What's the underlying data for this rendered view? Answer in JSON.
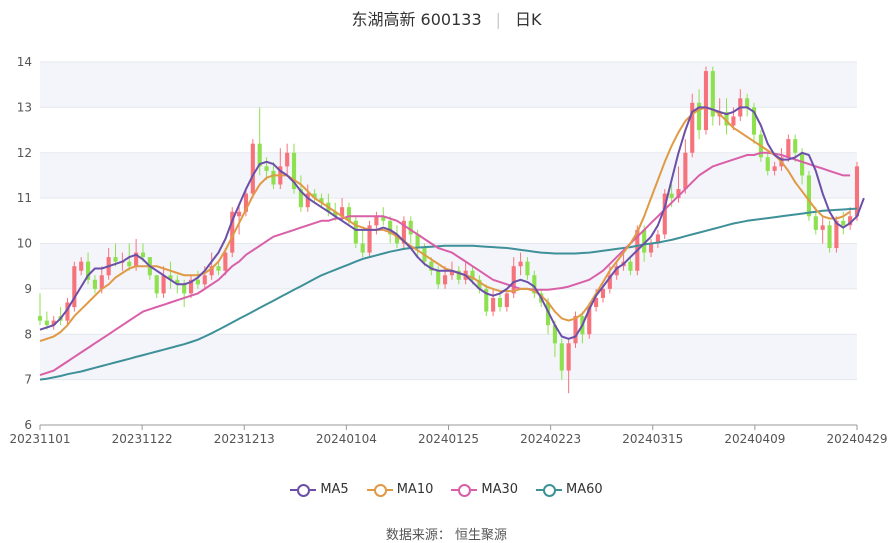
{
  "title": {
    "name": "东湖高新 600133",
    "period": "日K"
  },
  "source": "数据来源：  恒生聚源",
  "colors": {
    "up": "#f6737b",
    "down": "#8ee04f",
    "ma5": "#6b4fa8",
    "ma10": "#e09a45",
    "ma30": "#d95fa8",
    "ma60": "#3e9099",
    "band": "#f3f5fa",
    "grid": "#e5e8ee"
  },
  "legend": [
    {
      "key": "ma5",
      "label": "MA5"
    },
    {
      "key": "ma10",
      "label": "MA10"
    },
    {
      "key": "ma30",
      "label": "MA30"
    },
    {
      "key": "ma60",
      "label": "MA60"
    }
  ],
  "chart_data": {
    "type": "candlestick",
    "x_ticks": [
      "20231101",
      "20231122",
      "20231213",
      "20240104",
      "20240125",
      "20240223",
      "20240315",
      "20240409",
      "20240429"
    ],
    "y_ticks": [
      6,
      7,
      8,
      9,
      10,
      11,
      12,
      13,
      14
    ],
    "ylim": [
      6,
      14
    ],
    "n": 120,
    "candles": [
      [
        8.4,
        8.3,
        8.9,
        8.2
      ],
      [
        8.3,
        8.2,
        8.5,
        8.1
      ],
      [
        8.2,
        8.3,
        8.4,
        8.1
      ],
      [
        8.4,
        8.3,
        8.6,
        8.2
      ],
      [
        8.3,
        8.7,
        8.8,
        8.2
      ],
      [
        8.6,
        9.5,
        9.6,
        8.5
      ],
      [
        9.4,
        9.6,
        9.7,
        9.3
      ],
      [
        9.6,
        9.2,
        9.8,
        9.1
      ],
      [
        9.2,
        9.0,
        9.3,
        8.9
      ],
      [
        9.0,
        9.3,
        9.5,
        8.9
      ],
      [
        9.3,
        9.7,
        9.9,
        9.2
      ],
      [
        9.7,
        9.6,
        10.0,
        9.5
      ],
      [
        9.6,
        9.6,
        9.8,
        9.4
      ],
      [
        9.6,
        9.5,
        10.0,
        9.4
      ],
      [
        9.5,
        9.8,
        10.1,
        9.4
      ],
      [
        9.8,
        9.7,
        10.0,
        9.6
      ],
      [
        9.7,
        9.3,
        9.7,
        9.2
      ],
      [
        9.3,
        8.9,
        9.3,
        8.8
      ],
      [
        8.9,
        9.3,
        9.5,
        8.8
      ],
      [
        9.3,
        9.2,
        9.6,
        9.0
      ],
      [
        9.2,
        9.1,
        9.3,
        8.9
      ],
      [
        9.1,
        8.9,
        9.2,
        8.6
      ],
      [
        8.9,
        9.2,
        9.3,
        8.8
      ],
      [
        9.2,
        9.1,
        9.4,
        9.0
      ],
      [
        9.1,
        9.3,
        9.5,
        9.0
      ],
      [
        9.3,
        9.5,
        9.8,
        9.2
      ],
      [
        9.5,
        9.4,
        9.6,
        9.3
      ],
      [
        9.4,
        9.8,
        9.9,
        9.3
      ],
      [
        9.8,
        10.7,
        10.8,
        9.7
      ],
      [
        10.6,
        10.7,
        10.9,
        10.2
      ],
      [
        10.7,
        11.1,
        11.2,
        10.6
      ],
      [
        11.1,
        12.2,
        12.3,
        11.0
      ],
      [
        12.2,
        11.7,
        13.0,
        11.5
      ],
      [
        11.7,
        11.6,
        11.9,
        11.4
      ],
      [
        11.6,
        11.3,
        11.8,
        11.2
      ],
      [
        11.3,
        11.7,
        12.1,
        11.2
      ],
      [
        11.7,
        12.0,
        12.2,
        11.5
      ],
      [
        12.0,
        11.2,
        12.2,
        11.1
      ],
      [
        11.2,
        10.8,
        11.5,
        10.7
      ],
      [
        10.8,
        11.1,
        11.3,
        10.7
      ],
      [
        11.1,
        11.0,
        11.2,
        10.9
      ],
      [
        11.0,
        10.9,
        11.1,
        10.8
      ],
      [
        10.9,
        10.7,
        11.1,
        10.6
      ],
      [
        10.7,
        10.6,
        10.9,
        10.5
      ],
      [
        10.6,
        10.8,
        11.0,
        10.5
      ],
      [
        10.8,
        10.5,
        10.9,
        10.4
      ],
      [
        10.5,
        10.0,
        10.6,
        9.9
      ],
      [
        10.0,
        9.8,
        10.3,
        9.7
      ],
      [
        9.8,
        10.4,
        10.5,
        9.7
      ],
      [
        10.4,
        10.6,
        10.7,
        10.2
      ],
      [
        10.6,
        10.5,
        10.8,
        10.4
      ],
      [
        10.5,
        10.2,
        10.6,
        10.0
      ],
      [
        10.2,
        10.0,
        10.4,
        9.9
      ],
      [
        10.0,
        10.5,
        10.6,
        9.9
      ],
      [
        10.5,
        10.2,
        10.6,
        10.0
      ],
      [
        10.2,
        9.9,
        10.3,
        9.7
      ],
      [
        9.9,
        9.6,
        10.0,
        9.5
      ],
      [
        9.6,
        9.4,
        9.7,
        9.3
      ],
      [
        9.4,
        9.1,
        9.5,
        9.0
      ],
      [
        9.1,
        9.3,
        9.5,
        9.0
      ],
      [
        9.3,
        9.4,
        9.6,
        9.2
      ],
      [
        9.4,
        9.2,
        9.5,
        9.1
      ],
      [
        9.2,
        9.4,
        9.6,
        9.1
      ],
      [
        9.4,
        9.2,
        9.5,
        9.1
      ],
      [
        9.2,
        9.0,
        9.3,
        8.9
      ],
      [
        9.0,
        8.5,
        9.1,
        8.4
      ],
      [
        8.5,
        8.8,
        9.0,
        8.4
      ],
      [
        8.8,
        8.6,
        8.9,
        8.5
      ],
      [
        8.6,
        8.9,
        9.0,
        8.5
      ],
      [
        8.9,
        9.5,
        9.7,
        8.8
      ],
      [
        9.5,
        9.6,
        9.8,
        9.3
      ],
      [
        9.6,
        9.3,
        9.7,
        9.2
      ],
      [
        9.3,
        8.9,
        9.4,
        8.8
      ],
      [
        8.9,
        8.7,
        9.0,
        8.6
      ],
      [
        8.7,
        8.2,
        8.8,
        8.0
      ],
      [
        8.2,
        7.8,
        8.3,
        7.5
      ],
      [
        7.8,
        7.2,
        7.9,
        7.0
      ],
      [
        7.2,
        7.8,
        7.9,
        6.7
      ],
      [
        7.8,
        8.4,
        8.5,
        7.7
      ],
      [
        8.4,
        8.0,
        8.5,
        7.8
      ],
      [
        8.0,
        8.6,
        8.7,
        7.9
      ],
      [
        8.6,
        8.8,
        9.0,
        8.5
      ],
      [
        8.8,
        9.0,
        9.1,
        8.7
      ],
      [
        9.0,
        9.3,
        9.5,
        8.9
      ],
      [
        9.3,
        9.5,
        9.6,
        9.2
      ],
      [
        9.5,
        9.6,
        9.8,
        9.4
      ],
      [
        9.6,
        9.4,
        9.7,
        9.3
      ],
      [
        9.4,
        10.3,
        10.4,
        9.3
      ],
      [
        10.3,
        9.8,
        10.4,
        9.6
      ],
      [
        9.8,
        10.0,
        10.1,
        9.7
      ],
      [
        10.0,
        10.2,
        10.3,
        9.9
      ],
      [
        10.2,
        11.1,
        11.2,
        10.1
      ],
      [
        11.1,
        11.0,
        11.3,
        10.8
      ],
      [
        11.0,
        11.2,
        11.7,
        10.9
      ],
      [
        11.2,
        12.0,
        12.3,
        11.1
      ],
      [
        12.0,
        13.1,
        13.3,
        11.9
      ],
      [
        13.1,
        12.5,
        13.4,
        12.3
      ],
      [
        12.5,
        13.8,
        13.9,
        12.4
      ],
      [
        13.8,
        12.8,
        13.9,
        12.6
      ],
      [
        12.8,
        12.9,
        13.2,
        12.6
      ],
      [
        12.9,
        12.6,
        13.2,
        12.4
      ],
      [
        12.6,
        12.8,
        13.0,
        12.5
      ],
      [
        12.8,
        13.2,
        13.4,
        12.7
      ],
      [
        13.2,
        13.0,
        13.3,
        12.8
      ],
      [
        13.0,
        12.4,
        13.1,
        12.2
      ],
      [
        12.4,
        11.9,
        12.5,
        11.8
      ],
      [
        11.9,
        11.6,
        12.0,
        11.5
      ],
      [
        11.6,
        11.7,
        11.8,
        11.5
      ],
      [
        11.7,
        11.9,
        12.1,
        11.6
      ],
      [
        11.9,
        12.3,
        12.4,
        11.8
      ],
      [
        12.3,
        12.0,
        12.4,
        11.8
      ],
      [
        12.0,
        11.5,
        12.1,
        11.3
      ],
      [
        11.5,
        10.6,
        11.6,
        10.5
      ],
      [
        10.6,
        10.3,
        10.8,
        10.2
      ],
      [
        10.3,
        10.4,
        10.6,
        10.0
      ],
      [
        10.4,
        9.9,
        10.5,
        9.8
      ],
      [
        9.9,
        10.5,
        10.6,
        9.8
      ],
      [
        10.5,
        10.4,
        10.7,
        10.2
      ],
      [
        10.4,
        10.6,
        10.8,
        10.3
      ],
      [
        10.6,
        11.7,
        11.8,
        10.5
      ]
    ],
    "ma5": [
      8.1,
      8.15,
      8.2,
      8.35,
      8.55,
      8.8,
      9.05,
      9.3,
      9.45,
      9.45,
      9.5,
      9.55,
      9.6,
      9.7,
      9.75,
      9.65,
      9.5,
      9.4,
      9.3,
      9.2,
      9.1,
      9.1,
      9.15,
      9.25,
      9.4,
      9.6,
      9.8,
      10.1,
      10.5,
      10.85,
      11.2,
      11.5,
      11.75,
      11.8,
      11.75,
      11.6,
      11.5,
      11.35,
      11.15,
      11.0,
      10.9,
      10.8,
      10.7,
      10.6,
      10.5,
      10.4,
      10.3,
      10.3,
      10.3,
      10.3,
      10.35,
      10.3,
      10.2,
      10.05,
      9.9,
      9.7,
      9.55,
      9.45,
      9.4,
      9.4,
      9.4,
      9.35,
      9.3,
      9.15,
      9.0,
      8.9,
      8.85,
      8.9,
      9.0,
      9.15,
      9.2,
      9.15,
      9.05,
      8.8,
      8.5,
      8.2,
      7.95,
      7.9,
      7.95,
      8.2,
      8.55,
      8.85,
      9.05,
      9.25,
      9.45,
      9.55,
      9.7,
      9.85,
      10.0,
      10.15,
      10.4,
      10.8,
      11.4,
      12.0,
      12.5,
      12.9,
      13.0,
      13.0,
      12.95,
      12.9,
      12.85,
      12.9,
      13.0,
      13.0,
      12.9,
      12.6,
      12.2,
      11.95,
      11.85,
      11.85,
      11.9,
      12.0,
      11.95,
      11.6,
      11.1,
      10.7,
      10.45,
      10.35,
      10.45,
      10.6,
      11.0
    ],
    "ma10": [
      7.85,
      7.9,
      7.95,
      8.05,
      8.2,
      8.4,
      8.55,
      8.7,
      8.85,
      9.0,
      9.1,
      9.25,
      9.35,
      9.45,
      9.5,
      9.5,
      9.5,
      9.5,
      9.45,
      9.4,
      9.35,
      9.3,
      9.3,
      9.3,
      9.35,
      9.45,
      9.6,
      9.85,
      10.15,
      10.45,
      10.75,
      11.05,
      11.3,
      11.45,
      11.5,
      11.5,
      11.5,
      11.4,
      11.3,
      11.15,
      11.0,
      10.9,
      10.8,
      10.7,
      10.6,
      10.5,
      10.4,
      10.35,
      10.3,
      10.3,
      10.3,
      10.25,
      10.15,
      10.05,
      9.95,
      9.85,
      9.75,
      9.65,
      9.55,
      9.45,
      9.4,
      9.35,
      9.3,
      9.25,
      9.15,
      9.05,
      9.0,
      8.95,
      8.95,
      8.95,
      9.0,
      9.0,
      8.95,
      8.85,
      8.7,
      8.5,
      8.35,
      8.3,
      8.35,
      8.45,
      8.65,
      8.9,
      9.15,
      9.4,
      9.6,
      9.8,
      10.0,
      10.25,
      10.6,
      11.0,
      11.4,
      11.8,
      12.15,
      12.45,
      12.7,
      12.85,
      12.95,
      13.0,
      12.95,
      12.85,
      12.7,
      12.55,
      12.45,
      12.35,
      12.25,
      12.15,
      12.05,
      11.95,
      11.8,
      11.6,
      11.35,
      11.15,
      10.95,
      10.75,
      10.6,
      10.55,
      10.55,
      10.6,
      10.7
    ],
    "ma30": [
      7.1,
      7.15,
      7.2,
      7.3,
      7.4,
      7.5,
      7.6,
      7.7,
      7.8,
      7.9,
      8.0,
      8.1,
      8.2,
      8.3,
      8.4,
      8.5,
      8.55,
      8.6,
      8.65,
      8.7,
      8.75,
      8.8,
      8.85,
      8.9,
      9.0,
      9.1,
      9.2,
      9.35,
      9.5,
      9.6,
      9.75,
      9.85,
      9.95,
      10.05,
      10.15,
      10.2,
      10.25,
      10.3,
      10.35,
      10.4,
      10.45,
      10.5,
      10.5,
      10.55,
      10.55,
      10.6,
      10.6,
      10.6,
      10.6,
      10.6,
      10.6,
      10.55,
      10.5,
      10.4,
      10.3,
      10.2,
      10.1,
      10.0,
      9.9,
      9.85,
      9.8,
      9.7,
      9.6,
      9.5,
      9.4,
      9.3,
      9.2,
      9.15,
      9.1,
      9.05,
      9.0,
      9.0,
      8.98,
      8.98,
      8.98,
      9.0,
      9.02,
      9.05,
      9.1,
      9.15,
      9.2,
      9.3,
      9.4,
      9.55,
      9.7,
      9.85,
      10.0,
      10.15,
      10.3,
      10.45,
      10.6,
      10.75,
      10.9,
      11.05,
      11.2,
      11.35,
      11.5,
      11.6,
      11.7,
      11.75,
      11.8,
      11.85,
      11.9,
      11.95,
      11.95,
      12.0,
      12.0,
      11.98,
      11.95,
      11.9,
      11.85,
      11.8,
      11.75,
      11.7,
      11.65,
      11.6,
      11.55,
      11.5,
      11.5
    ],
    "ma60": [
      7.0,
      7.02,
      7.05,
      7.08,
      7.12,
      7.15,
      7.18,
      7.22,
      7.26,
      7.3,
      7.34,
      7.38,
      7.42,
      7.46,
      7.5,
      7.54,
      7.58,
      7.62,
      7.66,
      7.7,
      7.74,
      7.78,
      7.83,
      7.88,
      7.95,
      8.02,
      8.1,
      8.18,
      8.26,
      8.34,
      8.42,
      8.5,
      8.58,
      8.66,
      8.74,
      8.82,
      8.9,
      8.98,
      9.06,
      9.14,
      9.22,
      9.3,
      9.36,
      9.42,
      9.48,
      9.54,
      9.6,
      9.66,
      9.7,
      9.74,
      9.78,
      9.82,
      9.85,
      9.88,
      9.9,
      9.91,
      9.92,
      9.93,
      9.94,
      9.95,
      9.95,
      9.95,
      9.95,
      9.95,
      9.94,
      9.93,
      9.92,
      9.91,
      9.9,
      9.88,
      9.86,
      9.84,
      9.82,
      9.8,
      9.79,
      9.78,
      9.78,
      9.78,
      9.78,
      9.79,
      9.8,
      9.82,
      9.84,
      9.86,
      9.88,
      9.9,
      9.92,
      9.95,
      9.98,
      10.0,
      10.02,
      10.05,
      10.08,
      10.12,
      10.16,
      10.2,
      10.24,
      10.28,
      10.32,
      10.36,
      10.4,
      10.44,
      10.47,
      10.5,
      10.52,
      10.54,
      10.56,
      10.58,
      10.6,
      10.62,
      10.64,
      10.66,
      10.68,
      10.7,
      10.72,
      10.73,
      10.74,
      10.75,
      10.76,
      10.77
    ]
  }
}
